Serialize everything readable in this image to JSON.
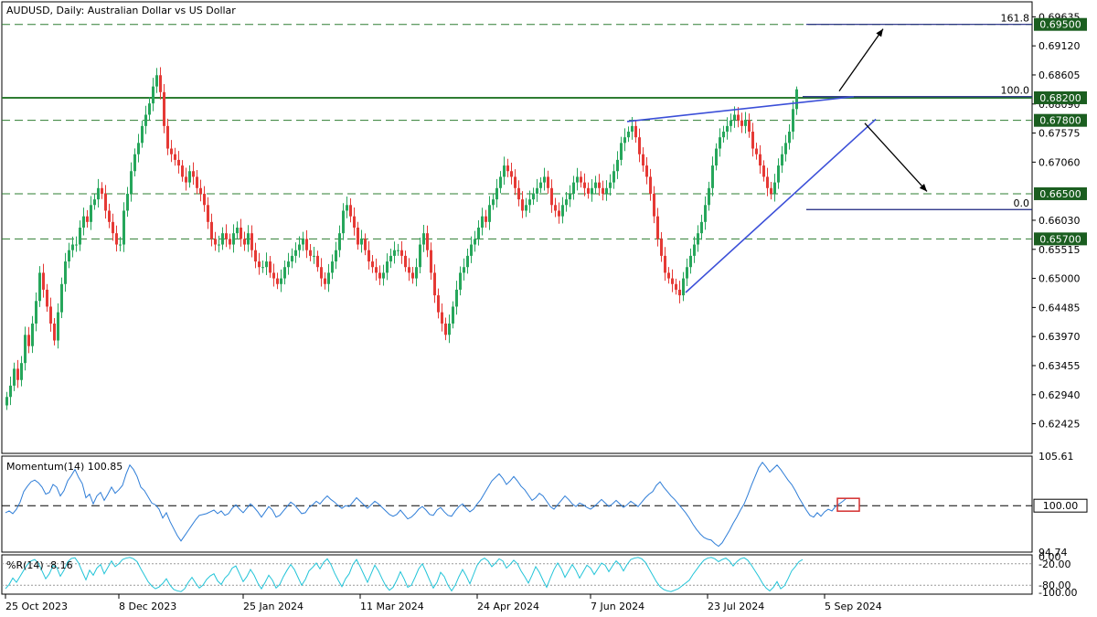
{
  "chart_data": [
    {
      "type": "candlestick",
      "title": "AUDUSD, Daily:  Australian Dollar vs US Dollar",
      "ylim": [
        0.619,
        0.699
      ],
      "y_ticks": [
        "0.69635",
        "0.69120",
        "0.68605",
        "0.68090",
        "0.67575",
        "0.67060",
        "0.66030",
        "0.65515",
        "0.65000",
        "0.64485",
        "0.63970",
        "0.63455",
        "0.62940",
        "0.62425"
      ],
      "x_ticks": [
        "25 Oct 2023",
        "8 Dec 2023",
        "25 Jan 2024",
        "11 Mar 2024",
        "24 Apr 2024",
        "7 Jun 2024",
        "23 Jul 2024",
        "5 Sep 2024"
      ],
      "x_tick_bars": [
        0,
        31,
        65,
        97,
        129,
        160,
        192,
        224
      ],
      "close_series": [
        0.629,
        0.631,
        0.634,
        0.632,
        0.635,
        0.64,
        0.638,
        0.642,
        0.646,
        0.651,
        0.648,
        0.645,
        0.642,
        0.639,
        0.644,
        0.649,
        0.653,
        0.655,
        0.656,
        0.656,
        0.659,
        0.661,
        0.66,
        0.663,
        0.664,
        0.666,
        0.665,
        0.662,
        0.66,
        0.658,
        0.656,
        0.656,
        0.662,
        0.665,
        0.669,
        0.672,
        0.674,
        0.677,
        0.679,
        0.681,
        0.684,
        0.686,
        0.683,
        0.677,
        0.673,
        0.672,
        0.671,
        0.67,
        0.668,
        0.667,
        0.669,
        0.668,
        0.666,
        0.665,
        0.663,
        0.66,
        0.657,
        0.656,
        0.656,
        0.658,
        0.657,
        0.656,
        0.658,
        0.659,
        0.657,
        0.656,
        0.658,
        0.655,
        0.653,
        0.652,
        0.652,
        0.653,
        0.651,
        0.65,
        0.649,
        0.65,
        0.652,
        0.653,
        0.654,
        0.655,
        0.656,
        0.657,
        0.655,
        0.654,
        0.654,
        0.652,
        0.65,
        0.649,
        0.651,
        0.653,
        0.655,
        0.658,
        0.662,
        0.663,
        0.661,
        0.659,
        0.656,
        0.657,
        0.655,
        0.653,
        0.652,
        0.651,
        0.65,
        0.651,
        0.653,
        0.654,
        0.655,
        0.655,
        0.654,
        0.652,
        0.651,
        0.65,
        0.652,
        0.656,
        0.658,
        0.655,
        0.651,
        0.647,
        0.644,
        0.642,
        0.64,
        0.642,
        0.645,
        0.648,
        0.651,
        0.652,
        0.654,
        0.656,
        0.657,
        0.659,
        0.661,
        0.66,
        0.663,
        0.664,
        0.666,
        0.668,
        0.67,
        0.669,
        0.668,
        0.666,
        0.664,
        0.662,
        0.663,
        0.664,
        0.665,
        0.666,
        0.667,
        0.668,
        0.666,
        0.663,
        0.662,
        0.661,
        0.663,
        0.664,
        0.665,
        0.667,
        0.668,
        0.667,
        0.666,
        0.665,
        0.666,
        0.667,
        0.666,
        0.665,
        0.666,
        0.667,
        0.669,
        0.671,
        0.674,
        0.675,
        0.676,
        0.677,
        0.675,
        0.672,
        0.67,
        0.668,
        0.665,
        0.661,
        0.657,
        0.654,
        0.651,
        0.65,
        0.649,
        0.648,
        0.647,
        0.65,
        0.652,
        0.654,
        0.656,
        0.658,
        0.66,
        0.663,
        0.666,
        0.67,
        0.673,
        0.675,
        0.676,
        0.677,
        0.678,
        0.679,
        0.678,
        0.677,
        0.678,
        0.676,
        0.673,
        0.672,
        0.67,
        0.668,
        0.666,
        0.665,
        0.667,
        0.67,
        0.672,
        0.674,
        0.676,
        0.68,
        0.6835
      ],
      "last_bar_high": 0.684,
      "horizontal_levels": [
        {
          "price": 0.695,
          "label": "0.69500",
          "style": "dashed"
        },
        {
          "price": 0.682,
          "label": "0.68200",
          "style": "solid"
        },
        {
          "price": 0.678,
          "label": "0.67800",
          "style": "dashed"
        },
        {
          "price": 0.665,
          "label": "0.66500",
          "style": "dashed"
        },
        {
          "price": 0.657,
          "label": "0.65700",
          "style": "dashed"
        }
      ],
      "fibonacci": [
        {
          "level": "161.8",
          "price": 0.695
        },
        {
          "level": "100.0",
          "price": 0.6822
        },
        {
          "level": "0.0",
          "price": 0.6622
        }
      ],
      "trendlines": [
        {
          "from": {
            "bar": 186,
            "price": 0.6475
          },
          "to": {
            "bar": 238,
            "price": 0.6782
          }
        },
        {
          "from": {
            "bar": 170,
            "price": 0.6778
          },
          "to": {
            "bar": 232,
            "price": 0.6822
          }
        }
      ],
      "arrows": [
        {
          "from": {
            "bar": 228,
            "price": 0.6832
          },
          "to": {
            "bar": 240,
            "price": 0.6942
          }
        },
        {
          "from": {
            "bar": 235,
            "price": 0.6775
          },
          "to": {
            "bar": 252,
            "price": 0.6654
          }
        }
      ],
      "colors": {
        "up": "#26a65b",
        "down": "#e53935",
        "level": "#2e7d32",
        "fib": "#1a237e",
        "trend": "#3b4fd8",
        "badge": "#1b5e20"
      }
    },
    {
      "type": "line",
      "title": "Momentum(14) 100.85",
      "ylim": [
        94.74,
        105.61
      ],
      "y_ticks": [
        "105.61",
        "94.74"
      ],
      "highlight_value": "100.00",
      "reference_level": 100.0,
      "series": [
        {
          "values": [
            99.2,
            99.4,
            99.1,
            99.6,
            100.4,
            101.6,
            102.2,
            102.7,
            102.9,
            102.6,
            102.1,
            101.3,
            101.5,
            102.4,
            102.1,
            101.1,
            101.7,
            102.8,
            103.4,
            104.1,
            103.2,
            102.5,
            100.9,
            101.3,
            100.2,
            101.1,
            101.5,
            100.6,
            101.3,
            102.1,
            101.4,
            101.8,
            102.3,
            103.6,
            104.6,
            104.1,
            103.3,
            102.1,
            101.7,
            101.0,
            100.3,
            100.1,
            99.6,
            98.6,
            99.2,
            98.2,
            97.4,
            96.6,
            96.0,
            96.6,
            97.2,
            97.8,
            98.4,
            98.9,
            99.0,
            99.1,
            99.3,
            99.5,
            99.1,
            99.4,
            98.9,
            99.1,
            99.7,
            100.1,
            99.6,
            99.2,
            99.7,
            100.2,
            99.8,
            99.3,
            98.7,
            99.3,
            99.9,
            99.5,
            98.7,
            98.9,
            99.4,
            99.9,
            100.4,
            100.1,
            99.6,
            99.1,
            99.2,
            99.8,
            100.1,
            100.5,
            100.2,
            100.7,
            101.1,
            100.7,
            100.4,
            100.0,
            99.7,
            100.0,
            99.9,
            100.4,
            100.9,
            100.5,
            100.1,
            99.7,
            100.1,
            100.5,
            100.2,
            99.8,
            99.4,
            99.0,
            98.8,
            99.0,
            99.5,
            99.0,
            98.5,
            98.7,
            99.1,
            99.6,
            99.9,
            99.5,
            99.0,
            98.9,
            99.5,
            99.8,
            99.3,
            98.9,
            98.8,
            99.4,
            99.9,
            100.2,
            99.7,
            99.3,
            99.6,
            100.2,
            100.7,
            101.4,
            102.1,
            102.8,
            103.2,
            103.6,
            103.1,
            102.4,
            102.8,
            103.3,
            102.8,
            102.2,
            101.8,
            101.2,
            100.6,
            100.9,
            101.4,
            101.1,
            100.5,
            99.9,
            99.6,
            100.1,
            100.6,
            101.1,
            100.7,
            100.2,
            99.9,
            100.3,
            100.1,
            99.8,
            99.6,
            99.9,
            100.3,
            100.7,
            100.3,
            99.9,
            100.2,
            100.6,
            100.2,
            99.8,
            100.1,
            100.5,
            100.2,
            99.9,
            100.4,
            100.9,
            101.3,
            101.6,
            102.3,
            102.7,
            102.1,
            101.6,
            101.1,
            100.7,
            100.2,
            99.7,
            99.2,
            98.6,
            97.9,
            97.3,
            96.8,
            96.4,
            96.2,
            96.1,
            95.7,
            95.4,
            95.8,
            96.5,
            97.2,
            98.0,
            98.7,
            99.5,
            100.2,
            101.2,
            102.3,
            103.3,
            104.3,
            104.9,
            104.4,
            103.8,
            104.2,
            104.6,
            104.1,
            103.5,
            102.9,
            102.4,
            101.7,
            100.9,
            100.2,
            99.5,
            98.9,
            98.7,
            99.2,
            98.8,
            99.3,
            99.6,
            99.4,
            99.9,
            100.2,
            100.5,
            100.85
          ]
        }
      ]
    },
    {
      "type": "line",
      "title": "%R(14) -8.16",
      "ylim": [
        -100,
        0
      ],
      "y_ticks": [
        "0.00",
        "-20.00",
        "-80.00",
        "-100.00"
      ],
      "reference_levels": [
        -20,
        -80
      ],
      "series": [
        {
          "values": [
            -90,
            -78,
            -60,
            -72,
            -55,
            -38,
            -22,
            -12,
            -8,
            -18,
            -40,
            -62,
            -48,
            -25,
            -30,
            -55,
            -38,
            -15,
            -5,
            -3,
            -18,
            -42,
            -65,
            -38,
            -52,
            -32,
            -22,
            -48,
            -30,
            -12,
            -28,
            -20,
            -8,
            -4,
            -2,
            -6,
            -14,
            -34,
            -52,
            -70,
            -82,
            -90,
            -85,
            -75,
            -62,
            -80,
            -92,
            -96,
            -98,
            -90,
            -72,
            -58,
            -74,
            -88,
            -80,
            -64,
            -54,
            -48,
            -68,
            -78,
            -60,
            -50,
            -32,
            -26,
            -48,
            -70,
            -56,
            -36,
            -52,
            -74,
            -90,
            -72,
            -52,
            -66,
            -88,
            -78,
            -56,
            -38,
            -22,
            -36,
            -58,
            -80,
            -64,
            -40,
            -30,
            -18,
            -34,
            -16,
            -6,
            -22,
            -46,
            -66,
            -84,
            -62,
            -48,
            -22,
            -8,
            -28,
            -50,
            -72,
            -48,
            -24,
            -40,
            -62,
            -82,
            -94,
            -86,
            -66,
            -42,
            -62,
            -86,
            -80,
            -58,
            -34,
            -20,
            -42,
            -66,
            -88,
            -72,
            -44,
            -56,
            -80,
            -96,
            -80,
            -56,
            -36,
            -54,
            -76,
            -50,
            -24,
            -10,
            -4,
            -12,
            -28,
            -18,
            -6,
            -12,
            -32,
            -22,
            -10,
            -20,
            -40,
            -56,
            -74,
            -52,
            -28,
            -44,
            -66,
            -86,
            -60,
            -36,
            -18,
            -34,
            -58,
            -40,
            -22,
            -38,
            -60,
            -42,
            -24,
            -32,
            -50,
            -34,
            -18,
            -24,
            -42,
            -26,
            -12,
            -22,
            -40,
            -22,
            -8,
            -4,
            -2,
            -6,
            -16,
            -34,
            -52,
            -70,
            -84,
            -92,
            -96,
            -98,
            -94,
            -90,
            -82,
            -74,
            -66,
            -50,
            -36,
            -22,
            -10,
            -4,
            -2,
            -6,
            -14,
            -8,
            -4,
            -12,
            -26,
            -14,
            -6,
            -3,
            -10,
            -24,
            -40,
            -56,
            -74,
            -88,
            -96,
            -86,
            -70,
            -90,
            -82,
            -62,
            -40,
            -28,
            -14,
            -8.16
          ]
        }
      ]
    }
  ]
}
